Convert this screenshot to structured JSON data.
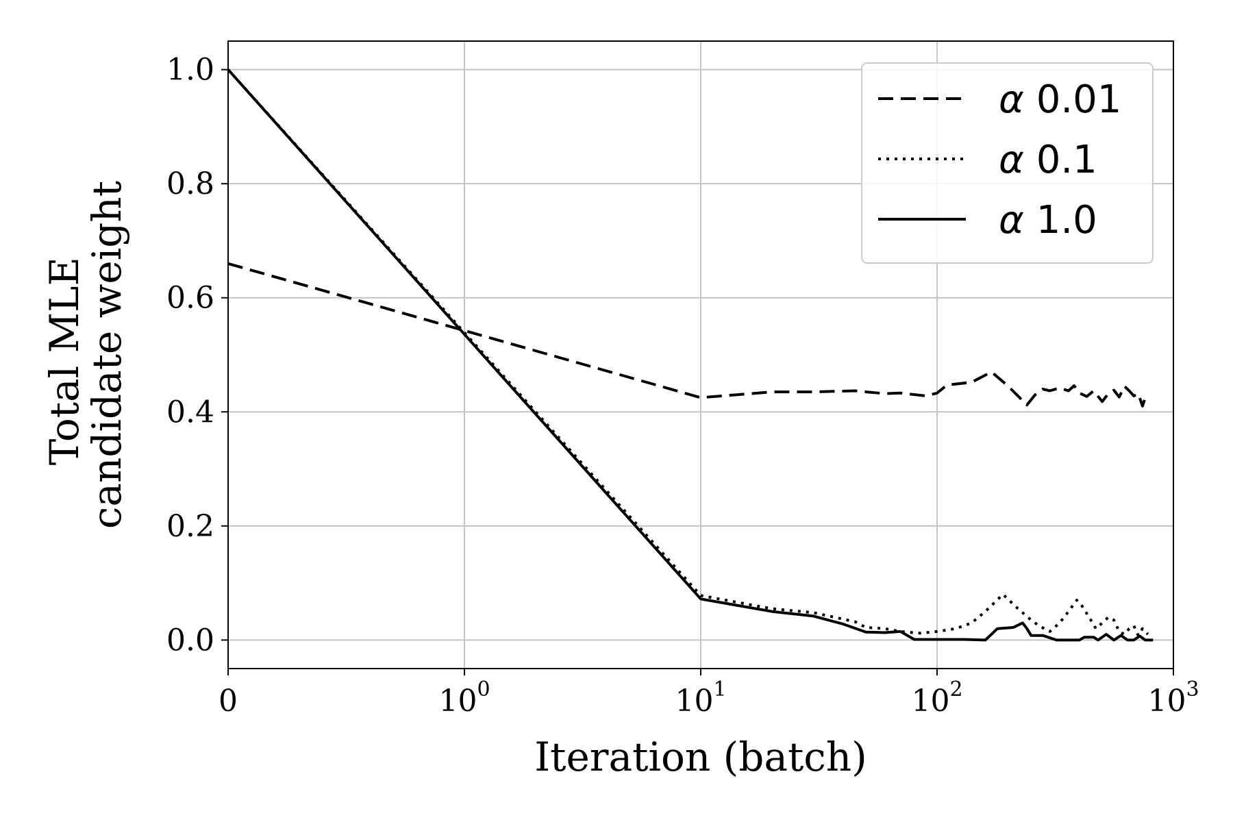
{
  "chart_data": {
    "type": "line",
    "xlabel": "Iteration (batch)",
    "ylabel_lines": [
      "Total MLE",
      "candidate weight"
    ],
    "xscale": "symlog",
    "xlim": [
      0,
      1000
    ],
    "ylim": [
      -0.05,
      1.05
    ],
    "grid": true,
    "legend_placement": "top-right",
    "x_ticks": [
      {
        "value": 0,
        "base": "0",
        "exp": ""
      },
      {
        "value": 1,
        "base": "10",
        "exp": "0"
      },
      {
        "value": 10,
        "base": "10",
        "exp": "1"
      },
      {
        "value": 100,
        "base": "10",
        "exp": "2"
      },
      {
        "value": 1000,
        "base": "10",
        "exp": "3"
      }
    ],
    "y_ticks": [
      {
        "value": 0.0,
        "label": "0.0"
      },
      {
        "value": 0.2,
        "label": "0.2"
      },
      {
        "value": 0.4,
        "label": "0.4"
      },
      {
        "value": 0.6,
        "label": "0.6"
      },
      {
        "value": 0.8,
        "label": "0.8"
      },
      {
        "value": 1.0,
        "label": "1.0"
      }
    ],
    "series": [
      {
        "name": "0.01",
        "legend_prefix": "α",
        "style": "dashed",
        "color": "#000000",
        "x": [
          0,
          10,
          20,
          30,
          45,
          50,
          60,
          70,
          90,
          100,
          110,
          140,
          170,
          200,
          240,
          260,
          280,
          300,
          330,
          360,
          380,
          400,
          430,
          460,
          500,
          530,
          560,
          590,
          620,
          650,
          680,
          710,
          740,
          760
        ],
        "y": [
          0.66,
          0.425,
          0.435,
          0.435,
          0.437,
          0.435,
          0.432,
          0.433,
          0.428,
          0.433,
          0.447,
          0.452,
          0.47,
          0.445,
          0.412,
          0.43,
          0.44,
          0.437,
          0.442,
          0.437,
          0.446,
          0.433,
          0.427,
          0.437,
          0.418,
          0.432,
          0.438,
          0.426,
          0.445,
          0.437,
          0.428,
          0.432,
          0.41,
          0.425
        ]
      },
      {
        "name": "0.1",
        "legend_prefix": "α",
        "style": "dotted",
        "color": "#000000",
        "x": [
          0,
          10,
          20,
          30,
          45,
          50,
          60,
          70,
          85,
          100,
          120,
          140,
          160,
          190,
          220,
          250,
          270,
          300,
          330,
          360,
          390,
          410,
          440,
          470,
          500,
          530,
          560,
          590,
          620,
          650,
          680,
          710,
          740,
          780
        ],
        "y": [
          1.0,
          0.078,
          0.055,
          0.048,
          0.032,
          0.022,
          0.02,
          0.015,
          0.012,
          0.015,
          0.02,
          0.03,
          0.05,
          0.08,
          0.055,
          0.035,
          0.025,
          0.015,
          0.03,
          0.05,
          0.07,
          0.06,
          0.04,
          0.02,
          0.03,
          0.04,
          0.035,
          0.015,
          0.01,
          0.02,
          0.025,
          0.008,
          0.02,
          0.01
        ]
      },
      {
        "name": "1.0",
        "legend_prefix": "α",
        "style": "solid",
        "color": "#000000",
        "x": [
          0,
          10,
          20,
          30,
          40,
          50,
          60,
          70,
          80,
          100,
          130,
          160,
          180,
          210,
          230,
          240,
          250,
          280,
          320,
          360,
          400,
          420,
          460,
          480,
          520,
          560,
          600,
          640,
          680,
          720,
          760,
          820
        ],
        "y": [
          1.0,
          0.072,
          0.05,
          0.042,
          0.028,
          0.014,
          0.013,
          0.015,
          0.001,
          0.001,
          0.001,
          0.0,
          0.02,
          0.022,
          0.03,
          0.02,
          0.008,
          0.008,
          0.0,
          0.0,
          0.0,
          0.005,
          0.005,
          0.0,
          0.01,
          0.0,
          0.008,
          0.0,
          0.0,
          0.007,
          0.0,
          0.0
        ]
      }
    ]
  }
}
